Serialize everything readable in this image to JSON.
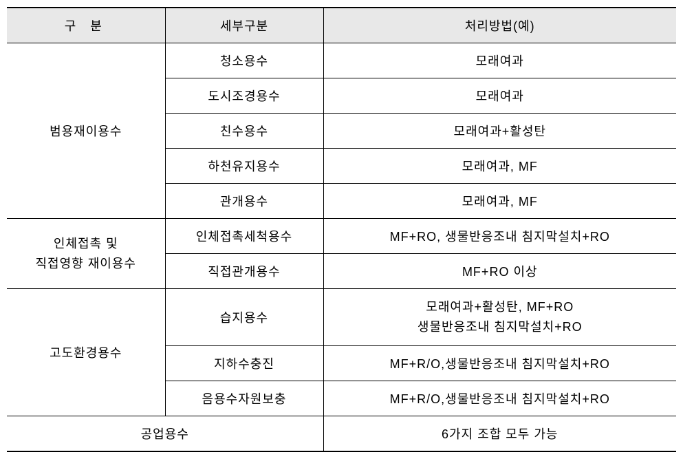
{
  "table": {
    "background_color": "#ffffff",
    "header_background": "#e8e8e8",
    "border_color": "#000000",
    "font_size": 18,
    "columns": {
      "col1_width": 230,
      "col2_width": 230,
      "col3_width": 513
    },
    "headers": {
      "col1": "구 분",
      "col2": "세부구분",
      "col3": "처리방법(예)"
    },
    "sections": [
      {
        "category": "범용재이용수",
        "rows": [
          {
            "sub": "청소용수",
            "method": "모래여과"
          },
          {
            "sub": "도시조경용수",
            "method": "모래여과"
          },
          {
            "sub": "친수용수",
            "method": "모래여과+활성탄"
          },
          {
            "sub": "하천유지용수",
            "method": "모래여과, MF"
          },
          {
            "sub": "관개용수",
            "method": "모래여과, MF"
          }
        ]
      },
      {
        "category_line1": "인체접촉 및",
        "category_line2": "직접영향 재이용수",
        "rows": [
          {
            "sub": "인체접촉세척용수",
            "method": "MF+RO, 생물반응조내 침지막설치+RO"
          },
          {
            "sub": "직접관개용수",
            "method": "MF+RO 이상"
          }
        ]
      },
      {
        "category": "고도환경용수",
        "rows": [
          {
            "sub": "습지용수",
            "method_line1": "모래여과+활성탄, MF+RO",
            "method_line2": "생물반응조내 침지막설치+RO"
          },
          {
            "sub": "지하수충진",
            "method": "MF+R/O,생물반응조내 침지막설치+RO"
          },
          {
            "sub": "음용수자원보충",
            "method": "MF+R/O,생물반응조내 침지막설치+RO"
          }
        ]
      }
    ],
    "footer": {
      "category": "공업용수",
      "method": "6가지 조합 모두 가능"
    }
  }
}
